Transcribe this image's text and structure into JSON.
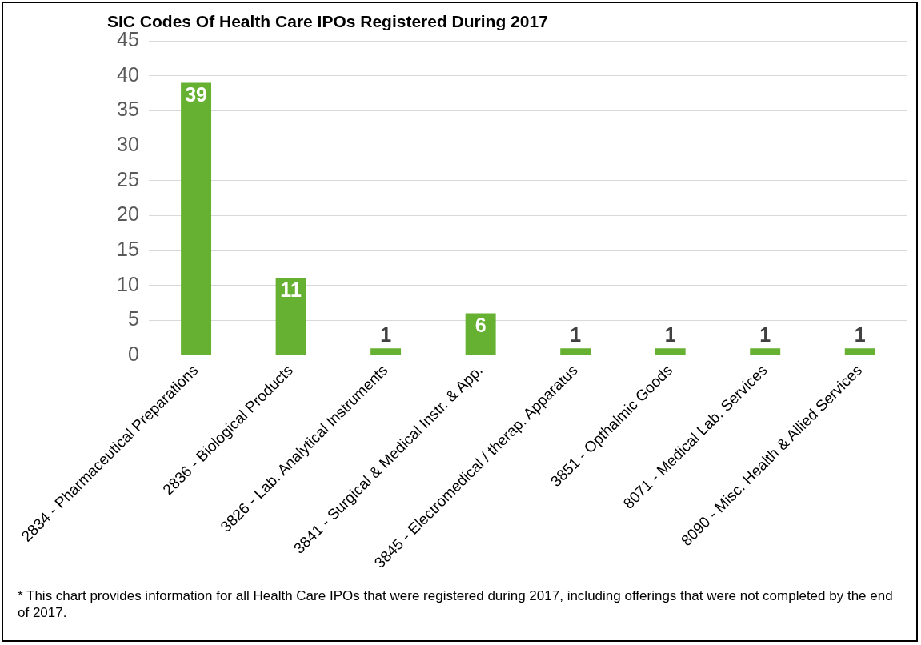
{
  "chart_data": {
    "type": "bar",
    "title": "SIC Codes Of Health Care IPOs Registered During 2017",
    "categories": [
      "2834 - Pharmaceutical Preparations",
      "2836 - Biological Products",
      "3826 - Lab. Analytical Instruments",
      "3841 - Surgical & Medical Instr. & App.",
      "3845 - Electromedical / therap. Apparatus",
      "3851 - Opthalmic Goods",
      "8071 - Medical Lab. Services",
      "8090 - Misc. Health & Allied Services"
    ],
    "values": [
      39,
      11,
      1,
      6,
      1,
      1,
      1,
      1
    ],
    "color": "#66b132",
    "ylim": [
      0,
      45
    ],
    "yticks": [
      0,
      5,
      10,
      15,
      20,
      25,
      30,
      35,
      40,
      45
    ],
    "grid": "y",
    "legend": false,
    "data_labels": true,
    "annotations": [
      "* This chart provides information for all Health Care IPOs that were registered during 2017, including offerings that were not completed by the end of 2017."
    ]
  }
}
